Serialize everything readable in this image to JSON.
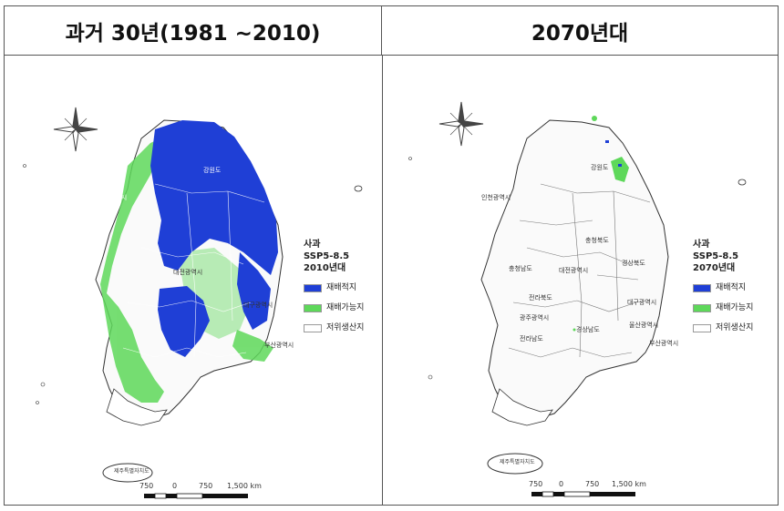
{
  "panels": [
    {
      "title": "과거 30년(1981 ~2010)",
      "legend": {
        "crop": "사과",
        "scenario": "SSP5-8.5",
        "period": "2010년대",
        "items": [
          {
            "label": "재배적지",
            "color": "#1f3fd6"
          },
          {
            "label": "재배가능지",
            "color": "#5ed85a"
          },
          {
            "label": "저위생산지",
            "color": "#ffffff"
          }
        ]
      },
      "scale": {
        "labels": [
          "750",
          "0",
          "750",
          "1,500 km"
        ]
      }
    },
    {
      "title": "2070년대",
      "legend": {
        "crop": "사과",
        "scenario": "SSP5-8.5",
        "period": "2070년대",
        "items": [
          {
            "label": "재배적지",
            "color": "#1f3fd6"
          },
          {
            "label": "재배가능지",
            "color": "#5ed85a"
          },
          {
            "label": "저위생산지",
            "color": "#ffffff"
          }
        ]
      },
      "scale": {
        "labels": [
          "750",
          "0",
          "750",
          "1,500 km"
        ]
      }
    }
  ],
  "map_labels": [
    "인천광역시",
    "충청남도",
    "충청북도",
    "대전광역시",
    "전라북도",
    "경상북도",
    "대구광역시",
    "전라남도",
    "경상남도",
    "울산광역시",
    "부산광역시",
    "광주광역시",
    "강원도",
    "제주특별자치도"
  ]
}
